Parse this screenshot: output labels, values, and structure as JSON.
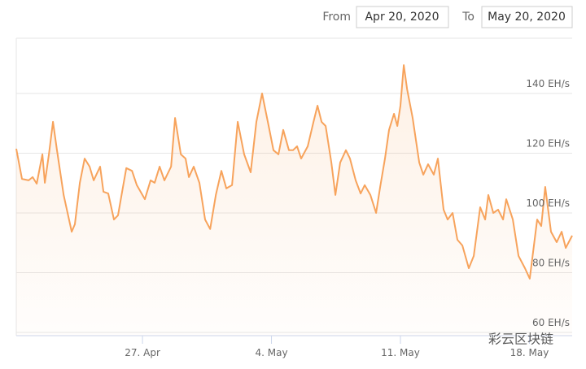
{
  "chart_data": {
    "type": "area",
    "range_selector": {
      "from_label": "From",
      "from_value": "Apr 20, 2020",
      "to_label": "To",
      "to_value": "May 20, 2020"
    },
    "watermark": "彩云区块链",
    "color": "#f7a35c",
    "grid": true,
    "x": [
      0.15,
      0.46,
      0.82,
      1.04,
      1.26,
      1.57,
      1.7,
      1.92,
      2.14,
      2.36,
      2.72,
      3.16,
      3.33,
      3.6,
      3.86,
      4.13,
      4.35,
      4.7,
      4.88,
      5.14,
      5.45,
      5.67,
      5.9,
      6.12,
      6.43,
      6.69,
      7.13,
      7.44,
      7.66,
      7.93,
      8.19,
      8.55,
      8.77,
      9.08,
      9.34,
      9.52,
      9.78,
      10.09,
      10.4,
      10.67,
      10.98,
      11.28,
      11.55,
      11.86,
      12.17,
      12.52,
      12.87,
      13.18,
      13.49,
      13.85,
      14.11,
      14.38,
      14.64,
      14.95,
      15.17,
      15.39,
      15.61,
      15.97,
      16.28,
      16.5,
      16.72,
      16.94,
      17.25,
      17.47,
      17.73,
      18.04,
      18.26,
      18.57,
      18.84,
      19.06,
      19.37,
      19.68,
      19.9,
      20.16,
      20.38,
      20.65,
      20.83,
      21.0,
      21.18,
      21.36,
      21.66,
      22.02,
      22.24,
      22.5,
      22.81,
      23.03,
      23.34,
      23.56,
      23.83,
      24.09,
      24.36,
      24.71,
      24.98,
      25.33,
      25.6,
      25.77,
      26.04,
      26.3,
      26.57,
      26.74,
      27.1,
      27.41,
      27.76,
      28.02,
      28.42,
      28.64,
      28.86,
      29.17,
      29.48,
      29.75,
      29.97,
      30.32
    ],
    "values": [
      121.5,
      111.4,
      110.9,
      112.0,
      109.8,
      119.6,
      110.1,
      119.6,
      130.5,
      121.0,
      106.0,
      93.7,
      96.2,
      110.1,
      118.2,
      115.5,
      110.9,
      115.5,
      107.1,
      106.5,
      97.8,
      99.2,
      107.3,
      115.0,
      114.1,
      109.3,
      104.6,
      110.9,
      110.1,
      115.5,
      110.9,
      115.5,
      131.8,
      119.6,
      118.2,
      112.0,
      115.5,
      110.1,
      97.8,
      94.6,
      106.0,
      114.1,
      108.2,
      109.3,
      130.5,
      119.6,
      113.6,
      130.5,
      140.0,
      129.1,
      121.0,
      119.6,
      127.8,
      121.0,
      121.0,
      122.3,
      118.2,
      122.3,
      130.5,
      135.9,
      130.5,
      129.1,
      116.9,
      106.0,
      116.9,
      121.0,
      118.2,
      110.9,
      106.5,
      109.3,
      106.0,
      100.0,
      108.7,
      118.2,
      127.8,
      133.2,
      129.1,
      135.9,
      149.5,
      141.4,
      131.8,
      116.9,
      112.8,
      116.3,
      112.8,
      118.2,
      101.1,
      97.8,
      100.0,
      91.0,
      89.1,
      81.5,
      85.6,
      101.9,
      97.8,
      106.0,
      100.0,
      101.1,
      97.8,
      104.6,
      97.8,
      85.6,
      81.5,
      78.0,
      97.8,
      95.6,
      108.7,
      93.7,
      90.2,
      93.7,
      88.3,
      92.4
    ],
    "xlim": [
      0.15,
      30.32
    ],
    "xticks": [
      {
        "value": 7,
        "label": "27. Apr"
      },
      {
        "value": 14,
        "label": "4. May"
      },
      {
        "value": 21,
        "label": "11. May"
      },
      {
        "value": 28,
        "label": "18. May"
      }
    ],
    "ylim": [
      58.9,
      158.5
    ],
    "yticks": [
      {
        "value": 60,
        "label": "60 EH/s"
      },
      {
        "value": 80,
        "label": "80 EH/s"
      },
      {
        "value": 100,
        "label": "100 EH/s"
      },
      {
        "value": 120,
        "label": "120 EH/s"
      },
      {
        "value": 140,
        "label": "140 EH/s"
      }
    ]
  }
}
